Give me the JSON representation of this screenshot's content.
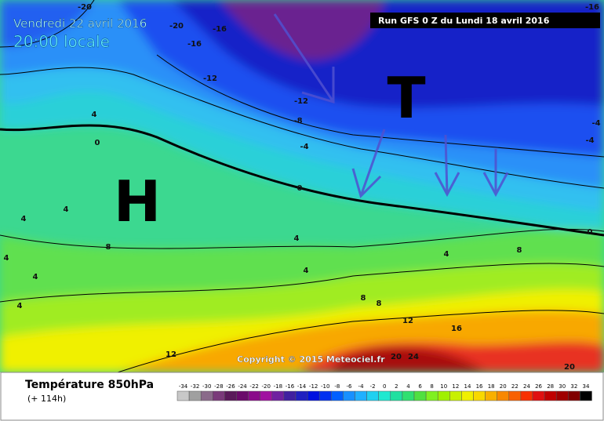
{
  "header": {
    "date": "Vendredi 22 avril 2016",
    "time": "20:00 locale",
    "run": "Run GFS 0 Z du Lundi 18 avril 2016"
  },
  "pressure_centers": {
    "low": "T",
    "high": "H"
  },
  "contour_labels": [
    -20,
    -20,
    -16,
    -16,
    -16,
    -12,
    -12,
    -8,
    -4,
    0,
    4,
    0,
    4,
    4,
    4,
    4,
    4,
    8,
    4,
    4,
    8,
    8,
    4,
    8,
    12,
    16,
    12,
    20,
    24,
    20,
    0,
    -4,
    -4
  ],
  "copyright": "Copyright © 2015 Meteociel.fr",
  "legend": {
    "title": "Température 850hPa",
    "lead_time": "(+ 114h)",
    "scale": {
      "values": [
        -34,
        -32,
        -30,
        -28,
        -26,
        -24,
        -22,
        -20,
        -18,
        -16,
        -14,
        -12,
        -10,
        -8,
        -6,
        -4,
        -2,
        0,
        2,
        4,
        6,
        8,
        10,
        12,
        14,
        16,
        18,
        20,
        22,
        24,
        26,
        28,
        30,
        32,
        34
      ],
      "colors": [
        "#c8c8c8",
        "#a0a0a0",
        "#8a6a8a",
        "#7a3a7a",
        "#5a1a5a",
        "#6a0a6a",
        "#8a0a8a",
        "#a010a0",
        "#7020a0",
        "#4020a0",
        "#2020c0",
        "#0010e0",
        "#0030f0",
        "#0060ff",
        "#1890ff",
        "#20b0ff",
        "#20d0f0",
        "#20e8d0",
        "#20e0a0",
        "#30e070",
        "#50e040",
        "#80f020",
        "#a0f000",
        "#c8f000",
        "#f0f000",
        "#f8d800",
        "#f8b000",
        "#f88800",
        "#f86000",
        "#f83000",
        "#e01010",
        "#c00000",
        "#a00000",
        "#800000",
        "#000000"
      ]
    }
  }
}
